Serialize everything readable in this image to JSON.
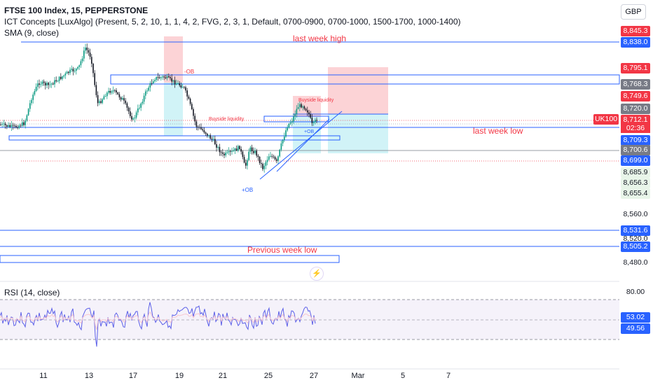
{
  "legend": {
    "title": "FTSE 100 Index, 15, PEPPERSTONE",
    "indicator": "ICT Concepts [LuxAlgo] (Present, 5, 2, 10, 1, 1, 4, 2, FVG, 2, 3, 1, Default, 0700-0900, 0700-1000, 1500-1700, 1000-1400)",
    "sma": "SMA (9, close)",
    "rsi": "RSI (14, close)"
  },
  "currency": "GBP",
  "symbol_tag": "UK100",
  "countdown": "02:36",
  "price_labels": [
    {
      "text": "8,845.3",
      "bg": "#f23645",
      "fg": "#ffffff"
    },
    {
      "text": "8,838.0",
      "bg": "#2962ff",
      "fg": "#ffffff"
    },
    {
      "text": "8,795.1",
      "bg": "#f23645",
      "fg": "#ffffff"
    },
    {
      "text": "8,768.3",
      "bg": "#787b86",
      "fg": "#ffffff"
    },
    {
      "text": "8,749.6",
      "bg": "#f23645",
      "fg": "#ffffff"
    },
    {
      "text": "8,720.0",
      "bg": "#787b86",
      "fg": "#ffffff"
    },
    {
      "text": "8,712.1",
      "bg": "#f23645",
      "fg": "#ffffff"
    },
    {
      "text": "8,709.3",
      "bg": "#2962ff",
      "fg": "#ffffff"
    },
    {
      "text": "8,700.6",
      "bg": "#787b86",
      "fg": "#ffffff"
    },
    {
      "text": "8,699.0",
      "bg": "#2962ff",
      "fg": "#ffffff"
    },
    {
      "text": "8,685.9",
      "bg": "#e8f5e9",
      "fg": "#131722"
    },
    {
      "text": "8,656.3",
      "bg": "#e8f5e9",
      "fg": "#131722"
    },
    {
      "text": "8,655.4",
      "bg": "#e8f5e9",
      "fg": "#131722"
    },
    {
      "text": "8,531.6",
      "bg": "#2962ff",
      "fg": "#ffffff"
    },
    {
      "text": "8,505.2",
      "bg": "#2962ff",
      "fg": "#ffffff"
    }
  ],
  "axis_ticks": [
    "8,560.0",
    "8,520.0",
    "8,480.0"
  ],
  "rsi_ticks": [
    "80.00"
  ],
  "rsi_labels": [
    {
      "text": "53.02",
      "bg": "#2962ff"
    },
    {
      "text": "49.56",
      "bg": "#2962ff"
    }
  ],
  "x_labels": [
    "11",
    "13",
    "17",
    "19",
    "21",
    "25",
    "27",
    "Mar",
    "5",
    "7"
  ],
  "annotations": {
    "last_week_high": "last week high",
    "last_week_low": "last week low",
    "previous_week_low": "Previous week low",
    "bearish_ob": "-OB",
    "bullish_ob": "+OB",
    "buyside_liquidity_1": "Buyside liquidity",
    "buyside_liquidity_2": "Buyside liquidity",
    "bullish_ob_2": "+OB"
  },
  "colors": {
    "up": "#089981",
    "down": "#131722",
    "blue_line": "#2962ff",
    "red": "#f23645",
    "rsi_line": "#5b5fe8",
    "rsi_band": "#7e57c2"
  },
  "icons": {
    "alert": "lightning-icon"
  }
}
